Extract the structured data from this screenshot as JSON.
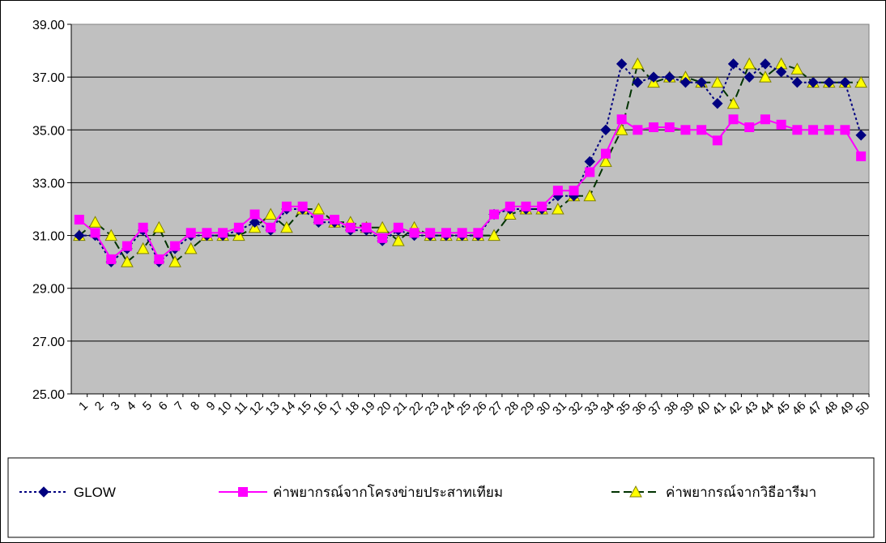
{
  "chart_data": {
    "type": "line",
    "title": "",
    "xlabel": "",
    "ylabel": "",
    "ylim": [
      25,
      39
    ],
    "yticks": [
      "25.00",
      "27.00",
      "29.00",
      "31.00",
      "33.00",
      "35.00",
      "37.00",
      "39.00"
    ],
    "x": [
      "1",
      "2",
      "3",
      "4",
      "5",
      "6",
      "7",
      "8",
      "9",
      "10",
      "11",
      "12",
      "13",
      "14",
      "15",
      "16",
      "17",
      "18",
      "19",
      "20",
      "21",
      "22",
      "23",
      "24",
      "25",
      "26",
      "27",
      "28",
      "29",
      "30",
      "31",
      "32",
      "33",
      "34",
      "35",
      "36",
      "37",
      "38",
      "39",
      "40",
      "41",
      "42",
      "43",
      "44",
      "45",
      "46",
      "47",
      "48",
      "49",
      "50"
    ],
    "grid": "horizontal",
    "legend_position": "bottom",
    "series": [
      {
        "name": "GLOW",
        "color": "#000080",
        "marker": "diamond",
        "line": "dotted",
        "values": [
          31.0,
          31.0,
          30.0,
          30.5,
          31.2,
          30.0,
          30.5,
          31.0,
          31.0,
          31.0,
          31.2,
          31.5,
          31.2,
          32.0,
          32.0,
          31.5,
          31.5,
          31.2,
          31.2,
          30.8,
          31.2,
          31.0,
          31.0,
          31.0,
          31.0,
          31.0,
          31.8,
          32.0,
          32.0,
          32.0,
          32.5,
          32.5,
          33.8,
          35.0,
          37.5,
          36.8,
          37.0,
          37.0,
          36.8,
          36.8,
          36.0,
          37.5,
          37.0,
          37.5,
          37.2,
          36.8,
          36.8,
          36.8,
          36.8,
          34.8
        ]
      },
      {
        "name": "ค่าพยากรณ์จากโครงข่ายประสาทเทียม",
        "color": "#ff00ff",
        "marker": "square",
        "line": "solid",
        "values": [
          31.6,
          31.1,
          30.1,
          30.6,
          31.3,
          30.1,
          30.6,
          31.1,
          31.1,
          31.1,
          31.3,
          31.8,
          31.3,
          32.1,
          32.1,
          31.6,
          31.6,
          31.3,
          31.3,
          30.9,
          31.3,
          31.1,
          31.1,
          31.1,
          31.1,
          31.1,
          31.8,
          32.1,
          32.1,
          32.1,
          32.7,
          32.7,
          33.4,
          34.1,
          35.4,
          35.0,
          35.1,
          35.1,
          35.0,
          35.0,
          34.6,
          35.4,
          35.1,
          35.4,
          35.2,
          35.0,
          35.0,
          35.0,
          35.0,
          34.0
        ]
      },
      {
        "name": "ค่าพยากรณ์จากวิธีอารีมา",
        "color": "#003300",
        "marker_color": "#ffff00",
        "marker": "triangle",
        "line": "dashed",
        "values": [
          31.0,
          31.5,
          31.0,
          30.0,
          30.5,
          31.3,
          30.0,
          30.5,
          31.0,
          31.0,
          31.0,
          31.3,
          31.8,
          31.3,
          32.0,
          32.0,
          31.5,
          31.5,
          31.3,
          31.3,
          30.8,
          31.3,
          31.0,
          31.0,
          31.0,
          31.0,
          31.0,
          31.8,
          32.0,
          32.0,
          32.0,
          32.5,
          32.5,
          33.8,
          35.0,
          37.5,
          36.8,
          37.0,
          37.0,
          36.8,
          36.8,
          36.0,
          37.5,
          37.0,
          37.5,
          37.3,
          36.8,
          36.8,
          36.8,
          36.8
        ]
      }
    ]
  }
}
